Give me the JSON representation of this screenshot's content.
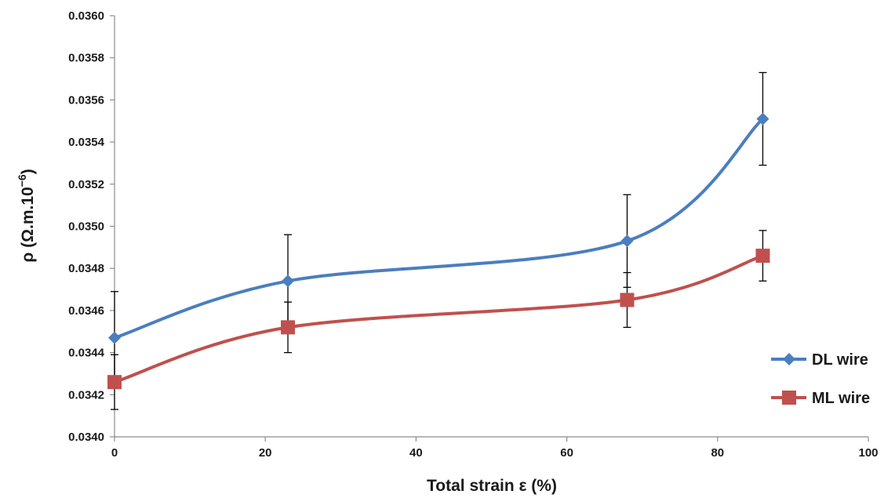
{
  "chart_data": {
    "type": "line",
    "xlabel": "Total strain ε (%)",
    "ylabel": "ρ (Ω.m.10",
    "ylabel_sup": "−6",
    "ylabel_close": ")",
    "xlim": [
      0,
      100
    ],
    "ylim": [
      0.034,
      0.036
    ],
    "x_ticks": [
      "0",
      "20",
      "40",
      "60",
      "80",
      "100"
    ],
    "y_ticks": [
      "0.0340",
      "0.0342",
      "0.0344",
      "0.0346",
      "0.0348",
      "0.0350",
      "0.0352",
      "0.0354",
      "0.0356",
      "0.0358",
      "0.0360"
    ],
    "grid": false,
    "legend_position": "bottom-right",
    "series": [
      {
        "name": "DL wire",
        "color": "#4a7ebf",
        "marker": "diamond",
        "x": [
          0,
          23,
          68,
          86
        ],
        "y": [
          0.03447,
          0.03474,
          0.03493,
          0.03551
        ],
        "error": [
          0.00022,
          0.00022,
          0.00022,
          0.00022
        ]
      },
      {
        "name": "ML wire",
        "color": "#c0504d",
        "marker": "square",
        "x": [
          0,
          23,
          68,
          86
        ],
        "y": [
          0.03426,
          0.03452,
          0.03465,
          0.03486
        ],
        "error": [
          0.00013,
          0.00012,
          0.00013,
          0.00012
        ]
      }
    ]
  }
}
